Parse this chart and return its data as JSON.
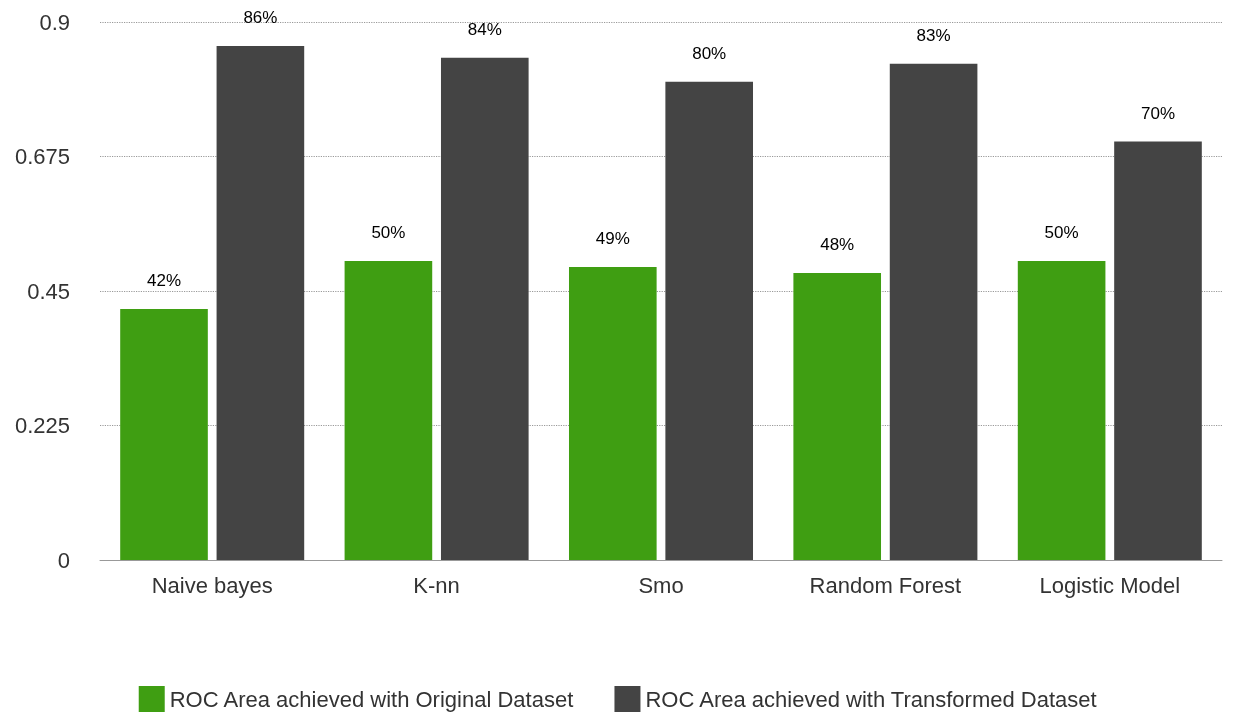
{
  "chart_data": {
    "type": "bar",
    "categories": [
      "Naive bayes",
      "K-nn",
      "Smo",
      "Random Forest",
      "Logistic Model"
    ],
    "series": [
      {
        "name": "ROC Area achieved with Original Dataset",
        "color": "#3f9e12",
        "values": [
          0.42,
          0.5,
          0.49,
          0.48,
          0.5
        ],
        "value_labels": [
          "42%",
          "50%",
          "49%",
          "48%",
          "50%"
        ]
      },
      {
        "name": "ROC Area achieved with Transformed Dataset",
        "color": "#444444",
        "values": [
          0.86,
          0.84,
          0.8,
          0.83,
          0.7
        ],
        "value_labels": [
          "86%",
          "84%",
          "80%",
          "83%",
          "70%"
        ]
      }
    ],
    "ylim": [
      0,
      0.9
    ],
    "yticks": [
      0,
      0.225,
      0.45,
      0.675,
      0.9
    ],
    "grid": "y",
    "legend": "bottom"
  }
}
